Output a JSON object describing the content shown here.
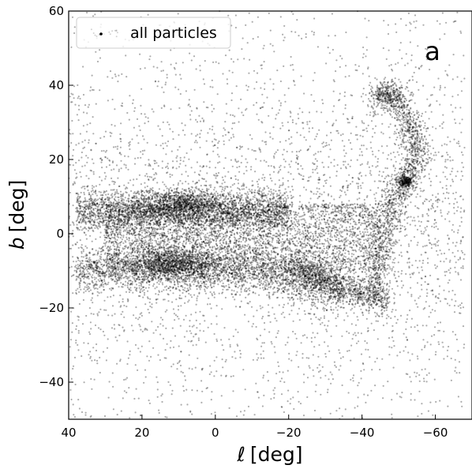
{
  "chart_data": {
    "type": "scatter",
    "xlabel_var": "ℓ",
    "xlabel_unit": "[deg]",
    "ylabel_var": "b",
    "ylabel_unit": "[deg]",
    "xlim": [
      40,
      -70
    ],
    "ylim": [
      -50,
      60
    ],
    "x_ticks": [
      40,
      20,
      0,
      -20,
      -40,
      -60
    ],
    "x_tick_labels": [
      "40",
      "20",
      "0",
      "−20",
      "−40",
      "−60"
    ],
    "y_ticks": [
      -40,
      -20,
      0,
      20,
      40,
      60
    ],
    "y_tick_labels": [
      "−40",
      "−20",
      "0",
      "20",
      "40",
      "60"
    ],
    "grid": false,
    "legend": {
      "position": "top-left",
      "entries": [
        "all particles"
      ]
    },
    "annotation": "a",
    "point_color": "#000000",
    "series": [
      {
        "name": "all particles",
        "components": [
          {
            "kind": "bar_upper",
            "l_range": [
              38,
              -20
            ],
            "b_center": 6,
            "b_sigma": 2.8,
            "count": 2600
          },
          {
            "kind": "bar_lower",
            "l_range": [
              38,
              -35
            ],
            "b_center": -10,
            "b_sigma": 2.8,
            "count": 2600
          },
          {
            "kind": "bridge",
            "l_range": [
              30,
              -45
            ],
            "b_range": [
              -10,
              8
            ],
            "count": 3200
          },
          {
            "kind": "dense_core_upper",
            "l_center": 10,
            "b_center": 8,
            "l_sigma": 6,
            "b_sigma": 2,
            "count": 900
          },
          {
            "kind": "dense_core_lower",
            "l_center": 12,
            "b_center": -8,
            "l_sigma": 5,
            "b_sigma": 2.2,
            "count": 900
          },
          {
            "kind": "tail_lower",
            "l_range": [
              -20,
              -45
            ],
            "b_range": [
              -8,
              -18
            ],
            "count": 900
          },
          {
            "kind": "stream_arc",
            "path": [
              [
                -45,
                -20
              ],
              [
                -44,
                -10
              ],
              [
                -46,
                0
              ],
              [
                -48,
                8
              ],
              [
                -51,
                14
              ],
              [
                -54,
                18
              ],
              [
                -55,
                24
              ],
              [
                -53,
                30
              ],
              [
                -50,
                36
              ],
              [
                -47,
                38
              ],
              [
                -44,
                37
              ]
            ],
            "width": 1.8,
            "count": 1800
          },
          {
            "kind": "clump",
            "l_center": -52,
            "b_center": 14,
            "l_sigma": 1.0,
            "b_sigma": 0.8,
            "count": 250
          },
          {
            "kind": "halo",
            "l_range": [
              40,
              -68
            ],
            "b_range": [
              -50,
              60
            ],
            "count": 4000
          }
        ]
      }
    ]
  }
}
